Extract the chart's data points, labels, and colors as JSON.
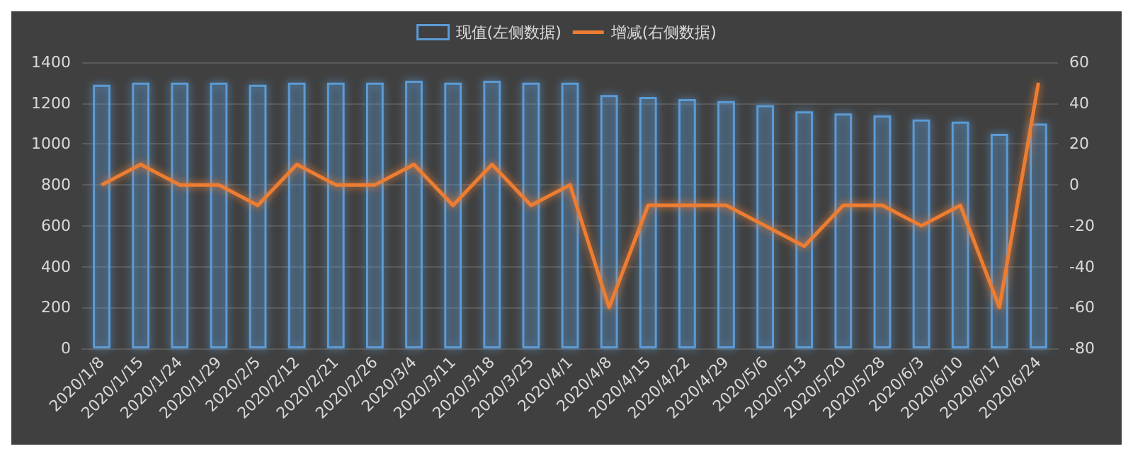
{
  "chart_data": {
    "type": "bar",
    "categories": [
      "2020/1/8",
      "2020/1/15",
      "2020/1/24",
      "2020/1/29",
      "2020/2/5",
      "2020/2/12",
      "2020/2/21",
      "2020/2/26",
      "2020/3/4",
      "2020/3/11",
      "2020/3/18",
      "2020/3/25",
      "2020/4/1",
      "2020/4/8",
      "2020/4/15",
      "2020/4/22",
      "2020/4/29",
      "2020/5/6",
      "2020/5/13",
      "2020/5/20",
      "2020/5/28",
      "2020/6/3",
      "2020/6/10",
      "2020/6/17",
      "2020/6/24"
    ],
    "series": [
      {
        "name": "现值(左侧数据)",
        "color": "#5b9bd5",
        "values": [
          1290,
          1300,
          1300,
          1300,
          1290,
          1300,
          1300,
          1300,
          1310,
          1300,
          1310,
          1300,
          1300,
          1240,
          1230,
          1220,
          1210,
          1190,
          1160,
          1150,
          1140,
          1120,
          1110,
          1050,
          1100
        ]
      },
      {
        "name": "增减(右侧数据)",
        "type": "line",
        "axis": "y2",
        "color": "#ed7d31",
        "values": [
          0,
          10,
          0,
          0,
          -10,
          10,
          0,
          0,
          10,
          -10,
          10,
          -10,
          0,
          -60,
          -10,
          -10,
          -10,
          -20,
          -30,
          -10,
          -10,
          -20,
          -10,
          -60,
          50
        ]
      }
    ],
    "ylim": [
      0,
      1400
    ],
    "yticks": [
      0,
      200,
      400,
      600,
      800,
      1000,
      1200,
      1400
    ],
    "y2lim": [
      -80,
      60
    ],
    "y2ticks": [
      -80,
      -60,
      -40,
      -20,
      0,
      20,
      40,
      60
    ],
    "grid": "y",
    "legend": "top",
    "marker": "none",
    "line_style": "solid"
  }
}
